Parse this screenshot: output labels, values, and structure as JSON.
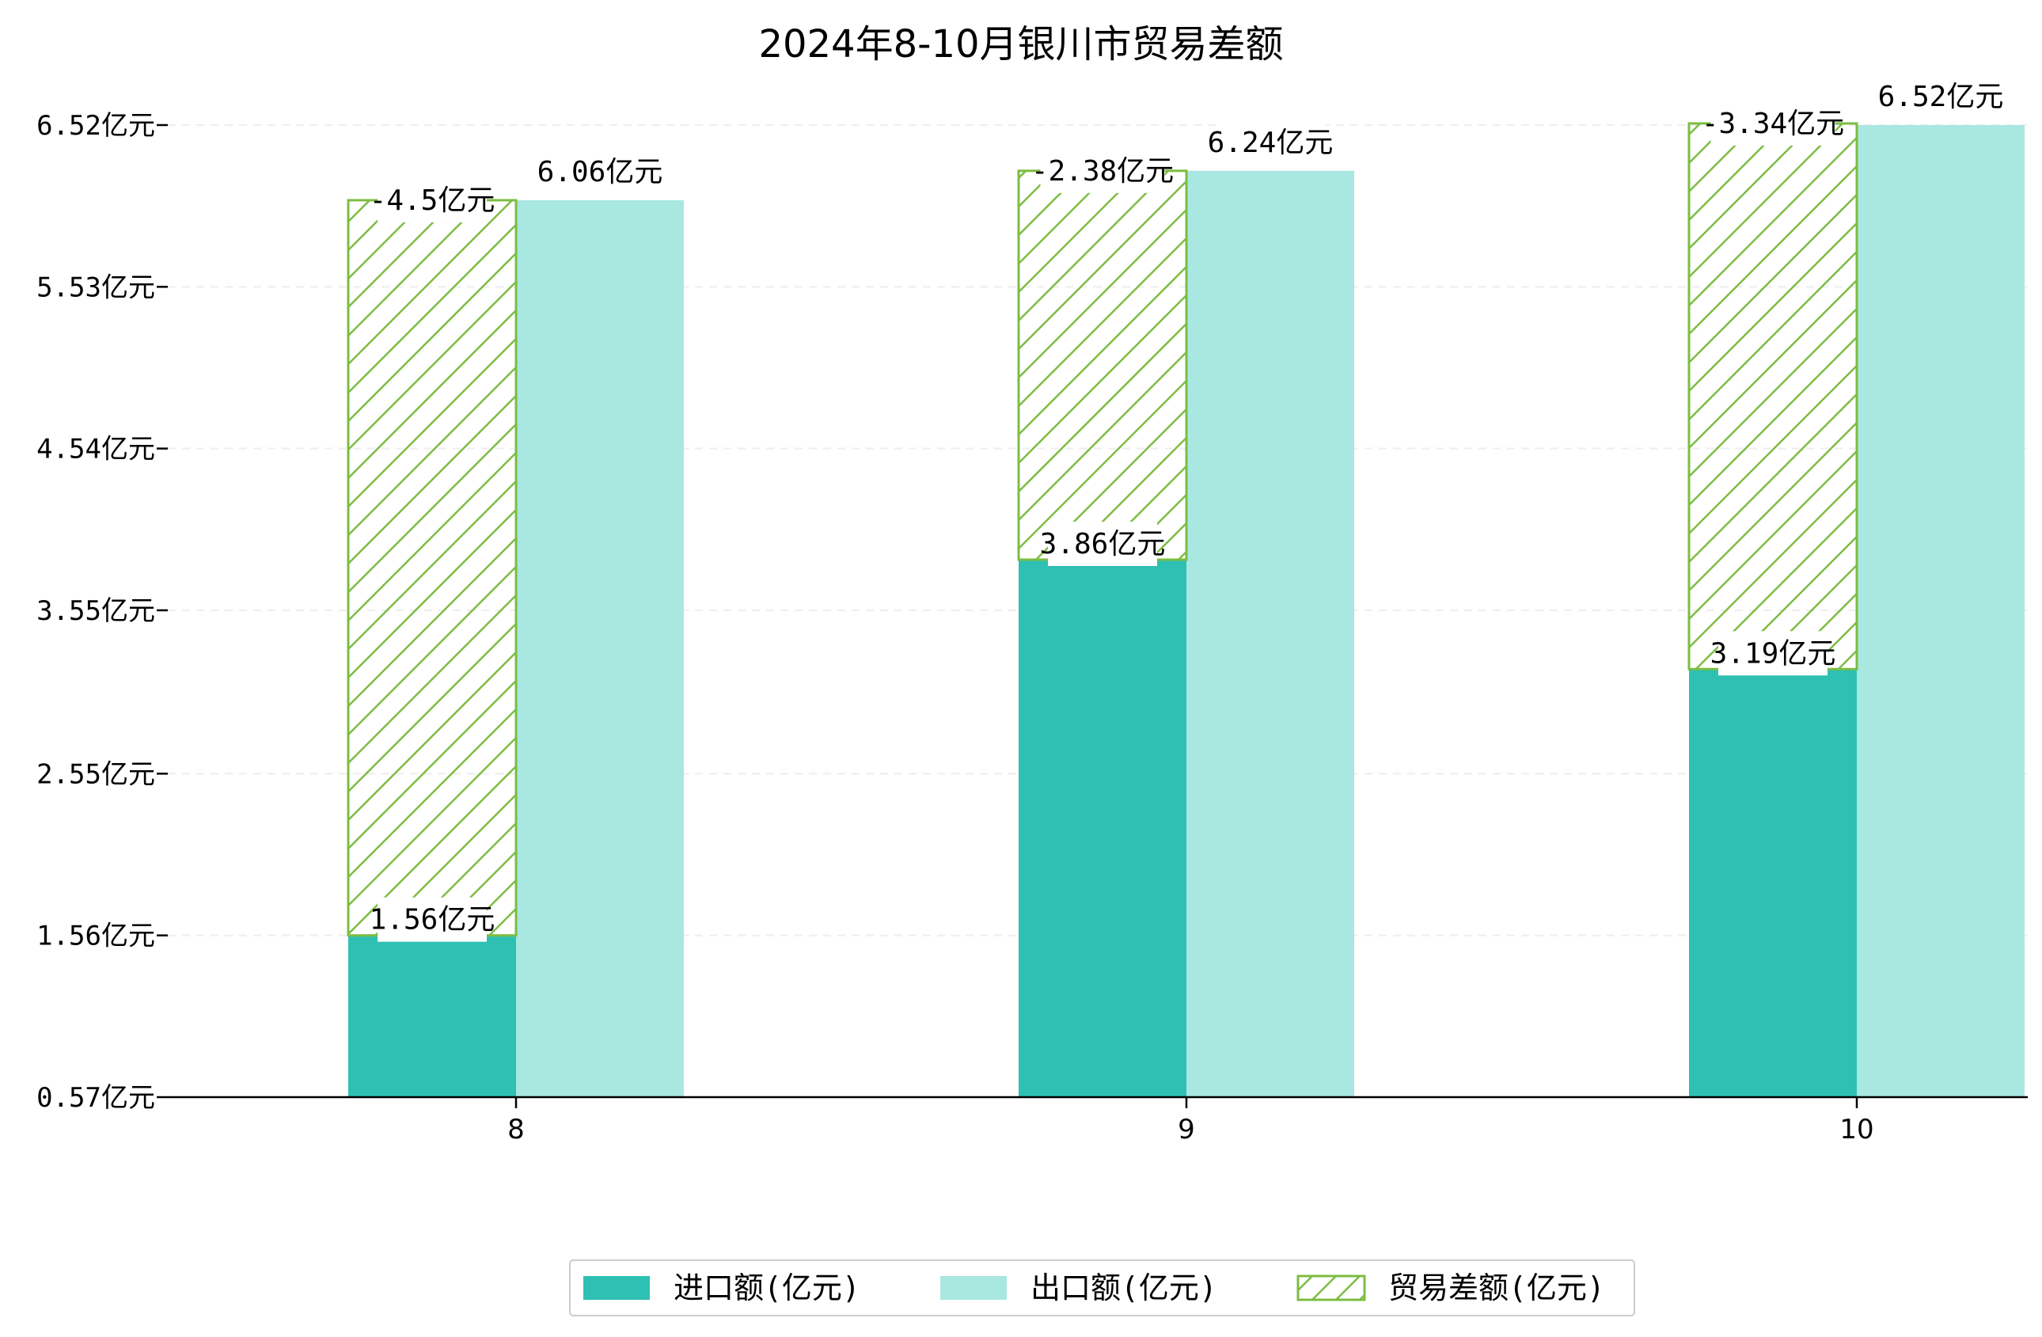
{
  "chart_data": {
    "type": "bar",
    "title": "2024年8-10月银川市贸易差额",
    "categories": [
      "8",
      "9",
      "10"
    ],
    "unit": "亿元",
    "ylim": [
      0.57,
      6.52
    ],
    "yticks": [
      0.57,
      1.56,
      2.55,
      3.55,
      4.54,
      5.53,
      6.52
    ],
    "ytick_labels": [
      "0.57亿元",
      "1.56亿元",
      "2.55亿元",
      "3.55亿元",
      "4.54亿元",
      "5.53亿元",
      "6.52亿元"
    ],
    "grid": "horizontal-dashed",
    "legend_position": "bottom-center",
    "series": [
      {
        "name": "进口额(亿元)",
        "values": [
          1.56,
          3.86,
          3.19
        ],
        "labels": [
          "1.56亿元",
          "3.86亿元",
          "3.19亿元"
        ],
        "color": "#2ec0b2"
      },
      {
        "name": "出口额(亿元)",
        "values": [
          6.06,
          6.24,
          6.52
        ],
        "labels": [
          "6.06亿元",
          "6.24亿元",
          "6.52亿元"
        ],
        "color": "#a9e7e1"
      },
      {
        "name": "贸易差额(亿元)",
        "values": [
          -4.5,
          -2.38,
          -3.34
        ],
        "labels": [
          "-4.5亿元",
          "-2.38亿元",
          "-3.34亿元"
        ],
        "color": "#7cbd42",
        "style": "hatched"
      }
    ]
  }
}
